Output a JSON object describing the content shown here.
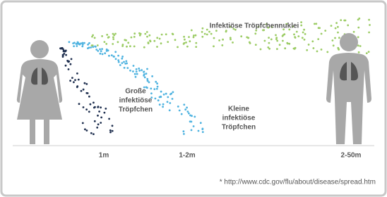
{
  "nuclei_label": "Infektiöse Tröpfchennuklei",
  "large_droplets_label": [
    "Große",
    "infektiöse",
    "Tröpfchen"
  ],
  "small_droplets_label": [
    "Kleine",
    "infektiöse",
    "Tröpfchen"
  ],
  "distances": [
    "1m",
    "1-2m",
    "2-50m"
  ],
  "source": "* http://www.cdc.gov/flu/about/disease/spread.htm"
}
